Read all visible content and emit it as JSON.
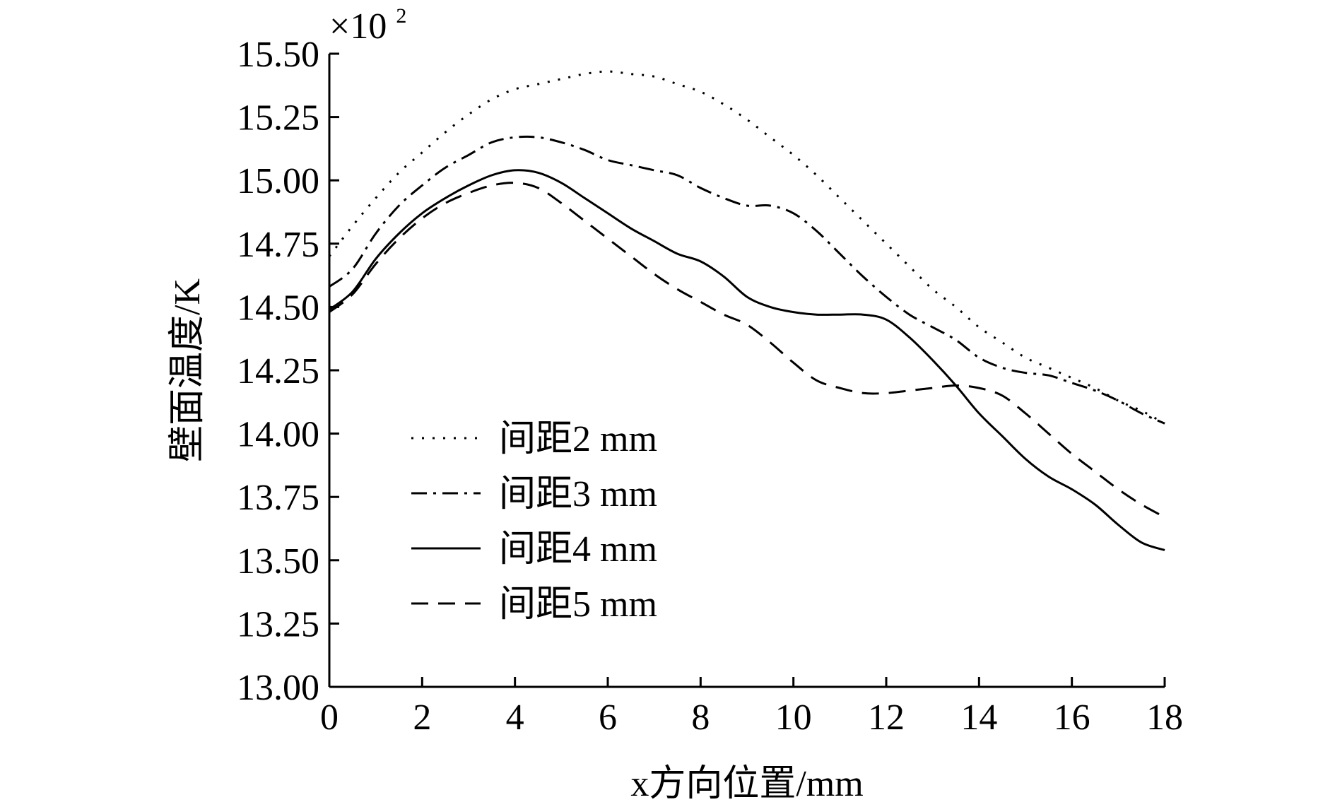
{
  "chart_data": {
    "type": "line",
    "title": "",
    "xlabel": "x方向位置/mm",
    "ylabel": "壁面温度/K",
    "y_multiplier_label": "×10",
    "y_multiplier_exp": "2",
    "xlim": [
      0,
      18
    ],
    "ylim": [
      13.0,
      15.5
    ],
    "x_ticks": [
      0,
      2,
      4,
      6,
      8,
      10,
      12,
      14,
      16,
      18
    ],
    "y_ticks": [
      13.0,
      13.25,
      13.5,
      13.75,
      14.0,
      14.25,
      14.5,
      14.75,
      15.0,
      15.25,
      15.5
    ],
    "x_tick_labels": [
      "0",
      "2",
      "4",
      "6",
      "8",
      "10",
      "12",
      "14",
      "16",
      "18"
    ],
    "y_tick_labels": [
      "13.00",
      "13.25",
      "13.50",
      "13.75",
      "14.00",
      "14.25",
      "14.50",
      "14.75",
      "15.00",
      "15.25",
      "15.50"
    ],
    "legend_position": "lower-left",
    "series": [
      {
        "name": "间距2 mm",
        "style": "dotted",
        "x": [
          0,
          0.5,
          1,
          1.5,
          2,
          2.5,
          3,
          3.5,
          4,
          4.5,
          5,
          5.5,
          6,
          6.5,
          7,
          7.5,
          8,
          8.5,
          9,
          9.5,
          10,
          10.5,
          11,
          11.5,
          12,
          12.5,
          13,
          13.5,
          14,
          14.5,
          15,
          15.5,
          16,
          16.5,
          17,
          17.5,
          18
        ],
        "values": [
          14.7,
          14.82,
          14.93,
          15.03,
          15.11,
          15.19,
          15.26,
          15.32,
          15.36,
          15.38,
          15.4,
          15.42,
          15.43,
          15.42,
          15.41,
          15.38,
          15.35,
          15.3,
          15.24,
          15.17,
          15.1,
          15.02,
          14.93,
          14.84,
          14.75,
          14.66,
          14.57,
          14.5,
          14.42,
          14.36,
          14.3,
          14.26,
          14.22,
          14.18,
          14.13,
          14.09,
          14.04
        ]
      },
      {
        "name": "间距3 mm",
        "style": "dashdot",
        "x": [
          0,
          0.5,
          1,
          1.5,
          2,
          2.5,
          3,
          3.5,
          4,
          4.5,
          5,
          5.5,
          6,
          6.5,
          7,
          7.5,
          8,
          8.5,
          9,
          9.5,
          10,
          10.5,
          11,
          11.5,
          12,
          12.5,
          13,
          13.5,
          14,
          14.5,
          15,
          15.5,
          16,
          16.5,
          17,
          17.5,
          18
        ],
        "values": [
          14.58,
          14.65,
          14.79,
          14.9,
          14.98,
          15.05,
          15.1,
          15.15,
          15.17,
          15.17,
          15.15,
          15.12,
          15.08,
          15.06,
          15.04,
          15.02,
          14.97,
          14.93,
          14.9,
          14.9,
          14.87,
          14.8,
          14.71,
          14.62,
          14.54,
          14.47,
          14.42,
          14.37,
          14.3,
          14.26,
          14.24,
          14.23,
          14.2,
          14.17,
          14.13,
          14.08,
          14.04
        ]
      },
      {
        "name": "间距4 mm",
        "style": "solid",
        "x": [
          0,
          0.5,
          1,
          1.5,
          2,
          2.5,
          3,
          3.5,
          4,
          4.5,
          5,
          5.5,
          6,
          6.5,
          7,
          7.5,
          8,
          8.5,
          9,
          9.5,
          10,
          10.5,
          11,
          11.5,
          12,
          12.5,
          13,
          13.5,
          14,
          14.5,
          15,
          15.5,
          16,
          16.5,
          17,
          17.5,
          18
        ],
        "values": [
          14.49,
          14.56,
          14.69,
          14.79,
          14.87,
          14.93,
          14.98,
          15.02,
          15.04,
          15.03,
          14.99,
          14.93,
          14.87,
          14.81,
          14.76,
          14.71,
          14.68,
          14.62,
          14.54,
          14.5,
          14.48,
          14.47,
          14.47,
          14.47,
          14.45,
          14.38,
          14.29,
          14.19,
          14.08,
          13.99,
          13.9,
          13.83,
          13.78,
          13.72,
          13.64,
          13.57,
          13.54
        ]
      },
      {
        "name": "间距5 mm",
        "style": "dashed",
        "x": [
          0,
          0.5,
          1,
          1.5,
          2,
          2.5,
          3,
          3.5,
          4,
          4.5,
          5,
          5.5,
          6,
          6.5,
          7,
          7.5,
          8,
          8.5,
          9,
          9.5,
          10,
          10.5,
          11,
          11.5,
          12,
          12.5,
          13,
          13.5,
          14,
          14.5,
          15,
          15.5,
          16,
          16.5,
          17,
          17.5,
          18
        ],
        "values": [
          14.48,
          14.55,
          14.67,
          14.77,
          14.85,
          14.91,
          14.95,
          14.98,
          14.99,
          14.97,
          14.91,
          14.84,
          14.77,
          14.7,
          14.63,
          14.57,
          14.52,
          14.47,
          14.43,
          14.36,
          14.28,
          14.21,
          14.18,
          14.16,
          14.16,
          14.17,
          14.18,
          14.19,
          14.18,
          14.15,
          14.08,
          14.0,
          13.92,
          13.85,
          13.78,
          13.72,
          13.67
        ]
      }
    ]
  }
}
